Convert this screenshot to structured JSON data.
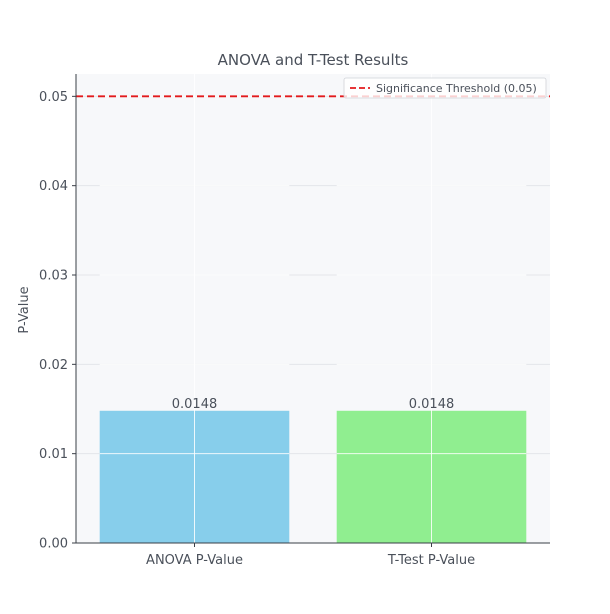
{
  "chart_data": {
    "type": "bar",
    "title": "ANOVA and T-Test Results",
    "xlabel": "",
    "ylabel": "P-Value",
    "categories": [
      "ANOVA P-Value",
      "T-Test P-Value"
    ],
    "values": [
      0.0148,
      0.0148
    ],
    "value_labels": [
      "0.0148",
      "0.0148"
    ],
    "bar_colors": [
      "#87ceeb",
      "#90ee90"
    ],
    "ylim": [
      0,
      0.0525
    ],
    "yticks": [
      0.0,
      0.01,
      0.02,
      0.03,
      0.04,
      0.05
    ],
    "ytick_labels": [
      "0.00",
      "0.01",
      "0.02",
      "0.03",
      "0.04",
      "0.05"
    ],
    "threshold": {
      "value": 0.05,
      "label": "Significance Threshold (0.05)",
      "color": "#e31a1c",
      "style": "dashed"
    },
    "grid": true,
    "legend_position": "top-right",
    "colors": {
      "plot_background": "#f7f8fa",
      "grid": "#e4e6ea",
      "axis": "#3a3f47",
      "text": "#4a505a"
    }
  }
}
